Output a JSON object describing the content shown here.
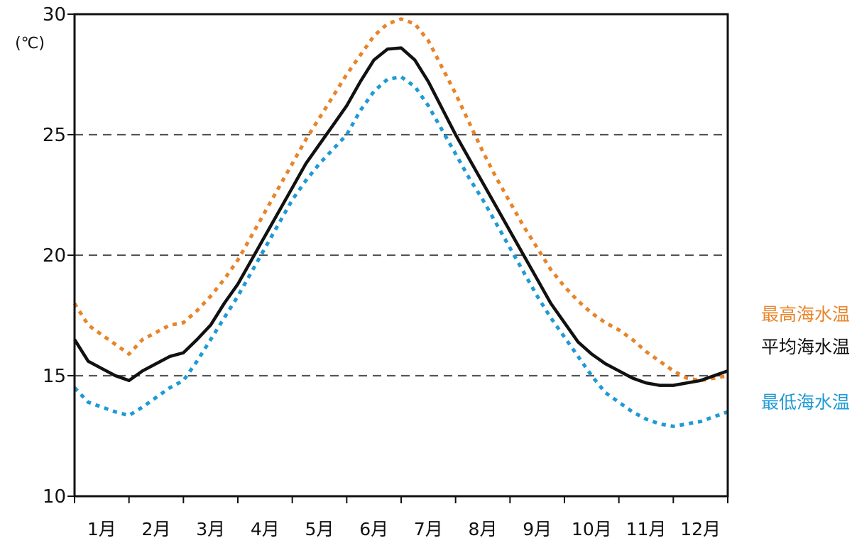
{
  "chart_data": {
    "type": "line",
    "title": "",
    "xlabel": "",
    "ylabel": "(℃)",
    "ylim": [
      10,
      30
    ],
    "yticks": [
      "10",
      "15",
      "20",
      "25",
      "30"
    ],
    "y_gridlines": [
      15,
      20,
      25
    ],
    "grid": "horizontal dashed",
    "legend_placement": "right",
    "categories": [
      "1月",
      "2月",
      "3月",
      "4月",
      "5月",
      "6月",
      "7月",
      "8月",
      "9月",
      "10月",
      "11月",
      "12月"
    ],
    "x": [
      0.0,
      0.25,
      0.5,
      0.75,
      1.0,
      1.25,
      1.5,
      1.75,
      2.0,
      2.25,
      2.5,
      2.75,
      3.0,
      3.25,
      3.5,
      3.75,
      4.0,
      4.25,
      4.5,
      4.75,
      5.0,
      5.25,
      5.5,
      5.75,
      6.0,
      6.25,
      6.5,
      6.75,
      7.0,
      7.25,
      7.5,
      7.75,
      8.0,
      8.25,
      8.5,
      8.75,
      9.0,
      9.25,
      9.5,
      9.75,
      10.0,
      10.25,
      10.5,
      10.75,
      11.0,
      11.25,
      11.5,
      11.75,
      12.0
    ],
    "series": [
      {
        "name": "最高海水温",
        "color": "#e8842a",
        "style": "dotted",
        "values": [
          18.0,
          17.1,
          16.7,
          16.3,
          15.9,
          16.5,
          16.8,
          17.1,
          17.2,
          17.7,
          18.3,
          19.0,
          19.8,
          20.8,
          21.8,
          22.8,
          23.8,
          24.8,
          25.7,
          26.6,
          27.5,
          28.3,
          29.1,
          29.6,
          29.8,
          29.6,
          28.9,
          27.8,
          26.7,
          25.5,
          24.3,
          23.2,
          22.2,
          21.2,
          20.3,
          19.4,
          18.7,
          18.1,
          17.6,
          17.2,
          16.9,
          16.5,
          16.0,
          15.6,
          15.2,
          14.9,
          14.8,
          14.9,
          15.0
        ]
      },
      {
        "name": "平均海水温",
        "color": "#111111",
        "style": "solid",
        "values": [
          16.5,
          15.6,
          15.3,
          15.0,
          14.8,
          15.2,
          15.5,
          15.8,
          15.95,
          16.5,
          17.1,
          18.0,
          18.8,
          19.8,
          20.8,
          21.8,
          22.8,
          23.8,
          24.6,
          25.4,
          26.2,
          27.2,
          28.1,
          28.55,
          28.6,
          28.1,
          27.2,
          26.1,
          25.0,
          24.0,
          23.0,
          22.0,
          21.0,
          20.0,
          19.0,
          18.0,
          17.2,
          16.4,
          15.9,
          15.5,
          15.2,
          14.9,
          14.7,
          14.6,
          14.6,
          14.7,
          14.8,
          15.0,
          15.2
        ]
      },
      {
        "name": "最低海水温",
        "color": "#1e9ad6",
        "style": "dotted",
        "values": [
          14.5,
          13.9,
          13.7,
          13.5,
          13.35,
          13.7,
          14.1,
          14.5,
          14.8,
          15.6,
          16.5,
          17.4,
          18.3,
          19.3,
          20.3,
          21.3,
          22.3,
          23.1,
          23.8,
          24.4,
          25.0,
          26.0,
          26.8,
          27.3,
          27.4,
          27.0,
          26.2,
          25.2,
          24.2,
          23.2,
          22.3,
          21.3,
          20.3,
          19.3,
          18.3,
          17.4,
          16.6,
          15.8,
          15.0,
          14.3,
          13.9,
          13.5,
          13.2,
          13.0,
          12.9,
          13.0,
          13.1,
          13.3,
          13.5
        ]
      }
    ]
  }
}
